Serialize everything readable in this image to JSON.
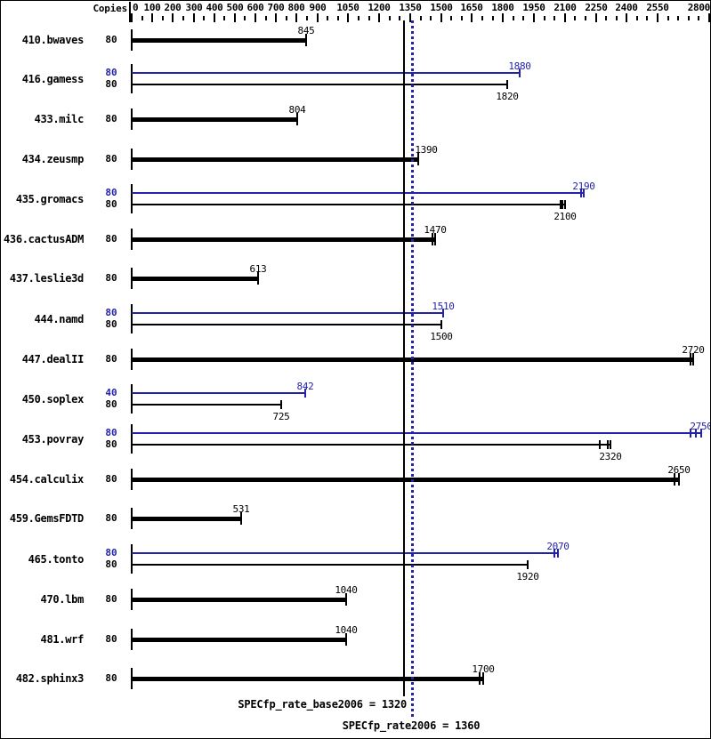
{
  "colors": {
    "base": "#000000",
    "peak": "#2222aa"
  },
  "header": {
    "copies_label": "Copies"
  },
  "chart_data": {
    "type": "bar",
    "orientation": "horizontal",
    "title": "",
    "xlabel": "",
    "axis": {
      "min": 0,
      "max": 2800,
      "minor_tick_step": 50,
      "labeled_ticks": [
        0,
        100,
        200,
        300,
        400,
        500,
        600,
        700,
        800,
        900,
        1050,
        1200,
        1350,
        1500,
        1650,
        1800,
        1950,
        2100,
        2250,
        2400,
        2550,
        2800
      ]
    },
    "legend": {
      "base_series": "base (black, thick)",
      "peak_series": "peak (blue, thin)"
    },
    "benchmarks": [
      {
        "name": "410.bwaves",
        "bars": [
          {
            "series": "base",
            "copies": "80",
            "value": "845",
            "run_ticks": [
              845
            ]
          }
        ]
      },
      {
        "name": "416.gamess",
        "bars": [
          {
            "series": "peak",
            "copies": "80",
            "value": "1880",
            "run_ticks": [
              1880
            ]
          },
          {
            "series": "base",
            "copies": "80",
            "value": "1820",
            "run_ticks": [
              1820
            ]
          }
        ]
      },
      {
        "name": "433.milc",
        "bars": [
          {
            "series": "base",
            "copies": "80",
            "value": "804",
            "run_ticks": [
              804
            ]
          }
        ]
      },
      {
        "name": "434.zeusmp",
        "bars": [
          {
            "series": "base",
            "copies": "80",
            "value": "1390",
            "run_ticks": [
              1390
            ],
            "label_dx": 9
          }
        ]
      },
      {
        "name": "435.gromacs",
        "bars": [
          {
            "series": "peak",
            "copies": "80",
            "value": "2190",
            "run_ticks": [
              2180,
              2192
            ]
          },
          {
            "series": "base",
            "copies": "80",
            "value": "2100",
            "run_ticks": [
              2078,
              2088,
              2100
            ]
          }
        ]
      },
      {
        "name": "436.cactusADM",
        "bars": [
          {
            "series": "base",
            "copies": "80",
            "value": "1470",
            "run_ticks": [
              1458,
              1470
            ]
          }
        ]
      },
      {
        "name": "437.leslie3d",
        "bars": [
          {
            "series": "base",
            "copies": "80",
            "value": "613",
            "run_ticks": [
              613
            ]
          }
        ]
      },
      {
        "name": "444.namd",
        "bars": [
          {
            "series": "peak",
            "copies": "80",
            "value": "1510",
            "run_ticks": [
              1510
            ]
          },
          {
            "series": "base",
            "copies": "80",
            "value": "1500",
            "run_ticks": [
              1500
            ]
          }
        ]
      },
      {
        "name": "447.dealII",
        "bars": [
          {
            "series": "base",
            "copies": "80",
            "value": "2720",
            "run_ticks": [
              2708,
              2722
            ]
          }
        ]
      },
      {
        "name": "450.soplex",
        "bars": [
          {
            "series": "peak",
            "copies": "40",
            "value": "842",
            "run_ticks": [
              842
            ]
          },
          {
            "series": "base",
            "copies": "80",
            "value": "725",
            "run_ticks": [
              725
            ]
          }
        ]
      },
      {
        "name": "453.povray",
        "bars": [
          {
            "series": "peak",
            "copies": "80",
            "value": "2750",
            "run_ticks": [
              2710,
              2735,
              2760
            ]
          },
          {
            "series": "base",
            "copies": "80",
            "value": "2320",
            "run_ticks": [
              2270,
              2308,
              2320
            ]
          }
        ]
      },
      {
        "name": "454.calculix",
        "bars": [
          {
            "series": "base",
            "copies": "80",
            "value": "2650",
            "run_ticks": [
              2633,
              2652
            ]
          }
        ]
      },
      {
        "name": "459.GemsFDTD",
        "bars": [
          {
            "series": "base",
            "copies": "80",
            "value": "531",
            "run_ticks": [
              531
            ]
          }
        ]
      },
      {
        "name": "465.tonto",
        "bars": [
          {
            "series": "peak",
            "copies": "80",
            "value": "2070",
            "run_ticks": [
              2048,
              2068
            ]
          },
          {
            "series": "base",
            "copies": "80",
            "value": "1920",
            "run_ticks": [
              1920
            ]
          }
        ]
      },
      {
        "name": "470.lbm",
        "bars": [
          {
            "series": "base",
            "copies": "80",
            "value": "1040",
            "run_ticks": [
              1040
            ]
          }
        ]
      },
      {
        "name": "481.wrf",
        "bars": [
          {
            "series": "base",
            "copies": "80",
            "value": "1040",
            "run_ticks": [
              1040
            ]
          }
        ]
      },
      {
        "name": "482.sphinx3",
        "bars": [
          {
            "series": "base",
            "copies": "80",
            "value": "1700",
            "run_ticks": [
              1688,
              1702
            ]
          }
        ]
      }
    ],
    "reference_lines": [
      {
        "series": "base",
        "value": 1320,
        "style": "solid",
        "color": "#000000"
      },
      {
        "series": "peak",
        "value": 1360,
        "style": "dotted",
        "color": "#2222aa"
      }
    ],
    "summary": {
      "base": {
        "metric": "SPECfp_rate_base2006",
        "value": 1320,
        "display": "SPECfp_rate_base2006 = 1320"
      },
      "peak": {
        "metric": "SPECfp_rate2006",
        "value": 1360,
        "display": "SPECfp_rate2006 = 1360"
      }
    }
  }
}
